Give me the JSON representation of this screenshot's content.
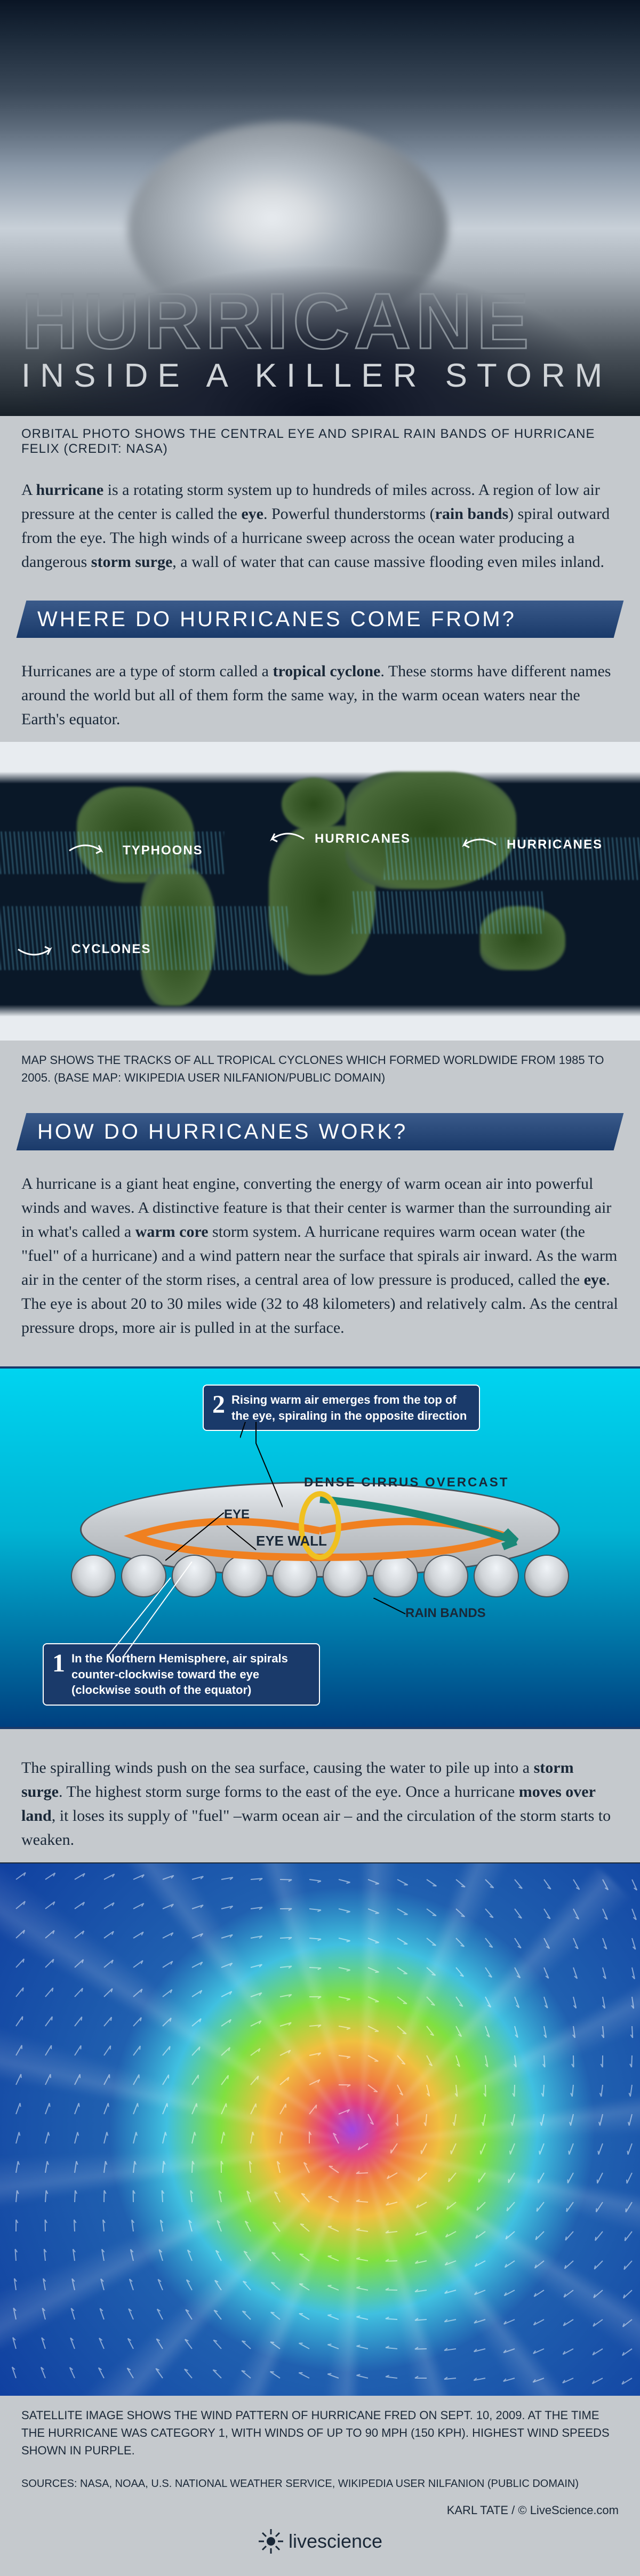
{
  "hero": {
    "title": "HURRICANE",
    "subtitle": "INSIDE A KILLER STORM",
    "caption": "ORBITAL PHOTO SHOWS THE CENTRAL EYE AND SPIRAL RAIN BANDS OF HURRICANE FELIX  (CREDIT: NASA)"
  },
  "intro_html": "A <b>hurricane</b> is a rotating storm system up to hundreds of miles across. A region of low air pressure at the center is called the <b>eye</b>. Powerful thunderstorms (<b>rain bands</b>) spiral outward from the eye. The high winds of a hurricane sweep across the ocean water producing a dangerous <b>storm surge</b>, a wall of water that can cause massive flooding even miles inland.",
  "section1": {
    "header": "WHERE DO HURRICANES COME FROM?",
    "text_html": "Hurricanes are a type of storm called a <b>tropical cyclone</b>. These storms have different names around the world but all of them form the same way, in the warm ocean waters near the Earth's equator.",
    "map_labels": {
      "typhoons": "TYPHOONS",
      "hurricanes1": "HURRICANES",
      "hurricanes2": "HURRICANES",
      "cyclones": "CYCLONES"
    },
    "map_caption": "MAP SHOWS THE TRACKS OF ALL TROPICAL CYCLONES WHICH FORMED WORLDWIDE FROM 1985 TO 2005. (BASE MAP: WIKIPEDIA USER NILFANION/PUBLIC DOMAIN)"
  },
  "section2": {
    "header": "HOW DO HURRICANES WORK?",
    "text1_html": "A hurricane is a giant heat engine, converting the energy of warm ocean air into powerful winds and waves. A distinctive feature is that their center is warmer than the surrounding air in what's called a <b>warm core</b> storm system. A hurricane requires warm ocean water (the \"fuel\" of a hurricane) and a wind pattern near the surface that spirals air inward. As the warm air in the center of the storm rises, a central area of low pressure is produced, called the <b>eye</b>. The eye is about 20 to 30 miles wide (32 to 48 kilometers) and relatively calm. As the central pressure drops, more air is pulled in at the surface.",
    "callout1": "In the Northern Hemisphere, air spirals counter-clockwise toward the eye (clockwise south of the equator)",
    "callout2": "Rising warm air emerges from the top of the eye, spiraling in the opposite direction",
    "labels": {
      "dense": "DENSE CIRRUS OVERCAST",
      "eye": "EYE",
      "eyewall": "EYE WALL",
      "rainbands": "RAIN BANDS"
    },
    "text2_html": "The spiralling winds push on the sea surface, causing the water to pile up into a <b>storm surge</b>. The highest storm surge forms to the east of the eye. Once a hurricane <b>moves over land</b>, it loses its supply of \"fuel\" –warm ocean air – and the circulation of the storm starts to weaken."
  },
  "satellite_caption": "SATELLITE IMAGE SHOWS THE WIND PATTERN OF HURRICANE FRED ON SEPT. 10, 2009. AT THE TIME THE HURRICANE WAS CATEGORY 1, WITH WINDS OF UP TO 90 MPH (150 KPH). HIGHEST WIND SPEEDS SHOWN IN PURPLE.",
  "sources": "SOURCES: NASA, NOAA, U.S. NATIONAL WEATHER SERVICE,  WIKIPEDIA USER  NILFANION (PUBLIC DOMAIN)",
  "byline": "KARL TATE / © LiveScience.com",
  "footer_logo": "livescience",
  "colors": {
    "header_grad_top": "#3a5a8a",
    "header_grad_bottom": "#1a3a6a",
    "callout_bg": "#1a3a6a",
    "page_bg": "#c5c9cd",
    "sky": "#00d4f0",
    "ocean": "#004080",
    "spiral_orange": "#f08020"
  }
}
